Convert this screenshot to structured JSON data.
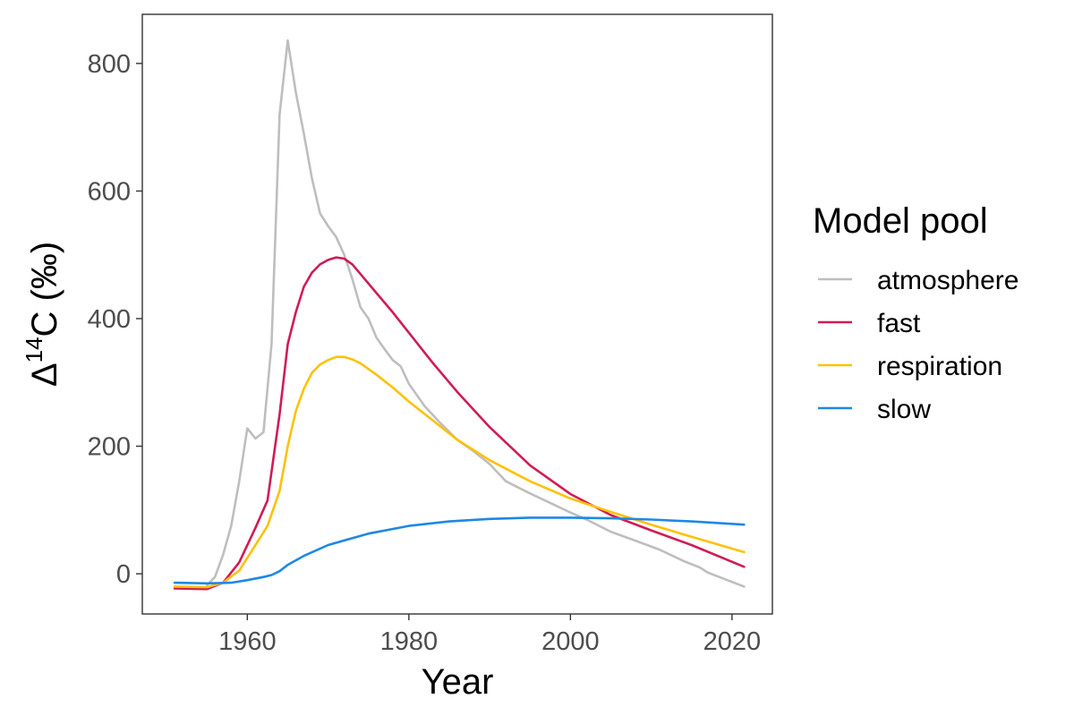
{
  "chart_data": {
    "type": "line",
    "xlabel": "Year",
    "ylabel_base": "Δ",
    "ylabel_sup": "14",
    "ylabel_rest": "C (‰)",
    "xlim": [
      1947,
      2025
    ],
    "ylim": [
      -63,
      877
    ],
    "xticks": [
      1960,
      1980,
      2000,
      2020
    ],
    "yticks": [
      0,
      200,
      400,
      600,
      800
    ],
    "grid": false,
    "legend": {
      "title": "Model pool",
      "position": "right"
    },
    "series": [
      {
        "name": "atmosphere",
        "color": "#BEBEBE",
        "x": [
          1955,
          1956,
          1957,
          1958,
          1959,
          1960,
          1961,
          1962,
          1963,
          1964,
          1965,
          1966,
          1967,
          1968,
          1969,
          1970,
          1971,
          1972,
          1973,
          1974,
          1975,
          1976,
          1977,
          1978,
          1979,
          1980,
          1982,
          1984,
          1986,
          1988,
          1990,
          1992,
          1995,
          1998,
          2000,
          2002,
          2005,
          2008,
          2011,
          2014,
          2016,
          2017,
          2021.5
        ],
        "y": [
          -18,
          -5,
          30,
          75,
          145,
          228,
          212,
          222,
          360,
          720,
          836,
          755,
          690,
          620,
          565,
          545,
          528,
          500,
          462,
          418,
          400,
          370,
          352,
          335,
          325,
          298,
          262,
          235,
          210,
          192,
          172,
          145,
          126,
          108,
          96,
          85,
          66,
          52,
          38,
          20,
          10,
          2,
          -20
        ]
      },
      {
        "name": "fast",
        "color": "#D01C55",
        "x": [
          1951,
          1955,
          1957,
          1959,
          1961,
          1962.5,
          1964,
          1965,
          1966,
          1967,
          1968,
          1969,
          1970,
          1971,
          1972,
          1973,
          1974,
          1976,
          1978,
          1980,
          1983,
          1986,
          1990,
          1995,
          2000,
          2005,
          2010,
          2015,
          2021.5
        ],
        "y": [
          -23,
          -24,
          -14,
          18,
          72,
          115,
          250,
          360,
          410,
          450,
          472,
          485,
          492,
          496,
          494,
          485,
          470,
          440,
          410,
          378,
          330,
          285,
          230,
          170,
          125,
          92,
          68,
          45,
          11
        ]
      },
      {
        "name": "respiration",
        "color": "#FFC107",
        "x": [
          1951,
          1955,
          1957,
          1959,
          1961,
          1962.5,
          1964,
          1965,
          1966,
          1967,
          1968,
          1969,
          1970,
          1971,
          1972,
          1973,
          1974,
          1976,
          1978,
          1980,
          1983,
          1986,
          1990,
          1995,
          2000,
          2005,
          2010,
          2015,
          2021.5
        ],
        "y": [
          -20,
          -21,
          -14,
          5,
          45,
          75,
          130,
          200,
          255,
          290,
          315,
          328,
          335,
          340,
          340,
          336,
          330,
          312,
          292,
          270,
          240,
          210,
          178,
          145,
          118,
          97,
          77,
          58,
          34
        ]
      },
      {
        "name": "slow",
        "color": "#1E88E5",
        "x": [
          1951,
          1955,
          1958,
          1960,
          1962,
          1963,
          1964,
          1965,
          1967,
          1970,
          1975,
          1980,
          1985,
          1990,
          1995,
          2000,
          2005,
          2010,
          2015,
          2021.5
        ],
        "y": [
          -14,
          -15,
          -14,
          -10,
          -5,
          -2,
          4,
          14,
          28,
          45,
          63,
          75,
          82,
          86,
          88,
          88,
          87,
          85,
          82,
          77
        ]
      }
    ]
  }
}
